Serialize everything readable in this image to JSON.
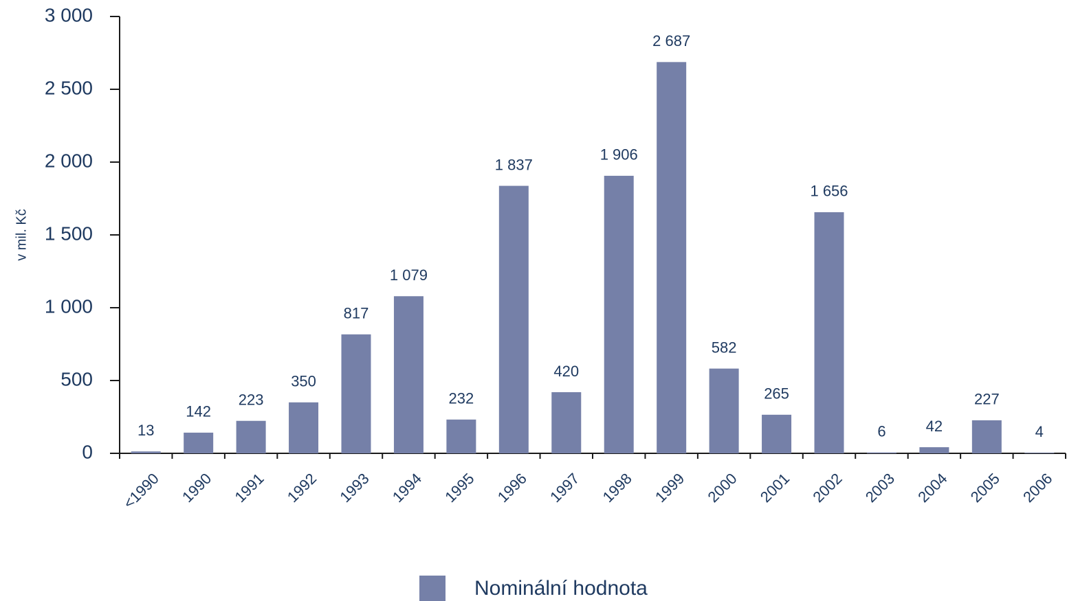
{
  "chart_data": {
    "type": "bar",
    "y_label": "v mil. Kč",
    "categories": [
      "<1990",
      "1990",
      "1991",
      "1992",
      "1993",
      "1994",
      "1995",
      "1996",
      "1997",
      "1998",
      "1999",
      "2000",
      "2001",
      "2002",
      "2003",
      "2004",
      "2005",
      "2006"
    ],
    "series": [
      {
        "name": "Nominální hodnota",
        "color": "#7580a8",
        "values": [
          13,
          142,
          223,
          350,
          817,
          1079,
          232,
          1837,
          420,
          1906,
          2687,
          582,
          265,
          1656,
          6,
          42,
          227,
          4
        ],
        "value_labels": [
          "13",
          "142",
          "223",
          "350",
          "817",
          "1 079",
          "232",
          "1 837",
          "420",
          "1 906",
          "2 687",
          "582",
          "265",
          "1 656",
          "6",
          "42",
          "227",
          "4"
        ]
      }
    ],
    "ylim": [
      0,
      3000
    ],
    "yticks": [
      0,
      500,
      {
        "value": 1000,
        "label": "1 000"
      },
      {
        "value": 1500,
        "label": "1 500"
      },
      {
        "value": 2000,
        "label": "2 000"
      },
      {
        "value": 2500,
        "label": "2 500"
      },
      {
        "value": 3000,
        "label": "3 000"
      }
    ],
    "grid": false,
    "legend": "bottom"
  }
}
